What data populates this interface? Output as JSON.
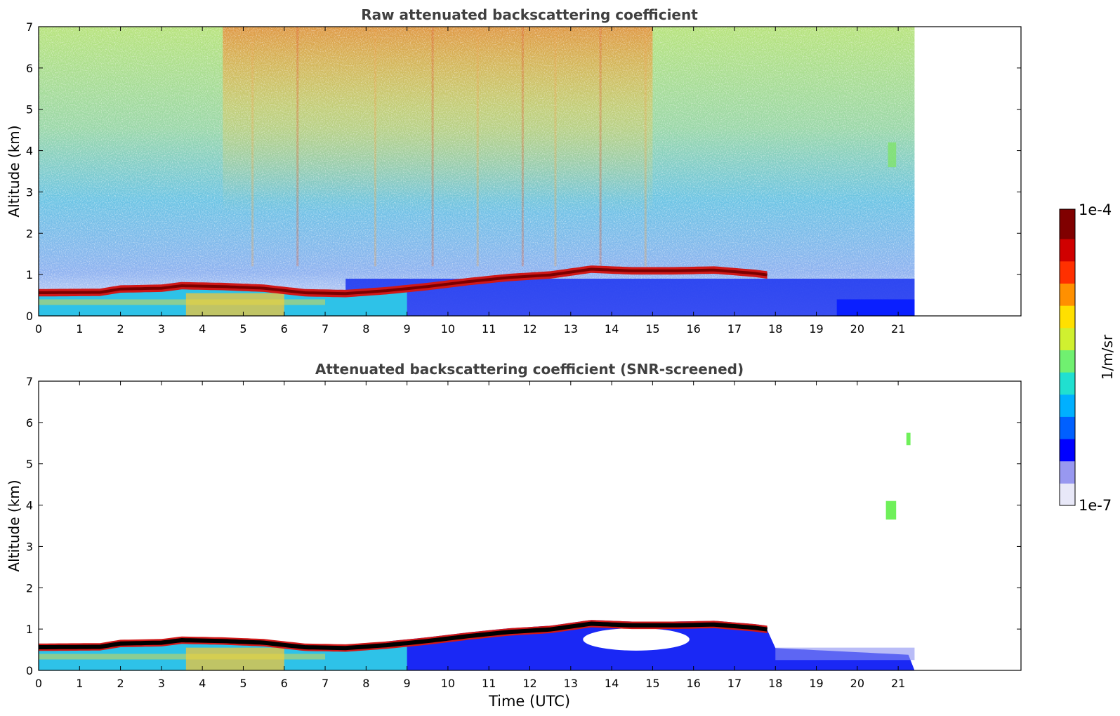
{
  "chart_data": [
    {
      "type": "heatmap",
      "title": "Raw attenuated backscattering coefficient",
      "xlabel": "",
      "ylabel": "Altitude (km)",
      "xlim": [
        0,
        24
      ],
      "ylim": [
        0,
        7
      ],
      "xticks": [
        "0",
        "1",
        "2",
        "3",
        "4",
        "5",
        "6",
        "7",
        "8",
        "9",
        "10",
        "11",
        "12",
        "13",
        "14",
        "15",
        "16",
        "17",
        "18",
        "19",
        "20",
        "21"
      ],
      "yticks": [
        "0",
        "1",
        "2",
        "3",
        "4",
        "5",
        "6",
        "7"
      ],
      "data_extent_x": [
        0,
        21.4
      ],
      "layer_top_x": [
        0,
        1.5,
        2,
        3,
        3.5,
        4.5,
        5.5,
        6.5,
        7.5,
        8.5,
        9.5,
        10.5,
        11.5,
        12.5,
        13.5,
        14.5,
        15.5,
        16.5,
        17.5,
        17.8
      ],
      "layer_top_y": [
        0.65,
        0.66,
        0.74,
        0.76,
        0.82,
        0.8,
        0.76,
        0.65,
        0.63,
        0.7,
        0.8,
        0.92,
        1.02,
        1.08,
        1.22,
        1.18,
        1.18,
        1.2,
        1.12,
        1.08
      ]
    },
    {
      "type": "heatmap",
      "title": "Attenuated backscattering coefficient (SNR-screened)",
      "xlabel": "Time (UTC)",
      "ylabel": "Altitude (km)",
      "xlim": [
        0,
        24
      ],
      "ylim": [
        0,
        7
      ],
      "xticks": [
        "0",
        "1",
        "2",
        "3",
        "4",
        "5",
        "6",
        "7",
        "8",
        "9",
        "10",
        "11",
        "12",
        "13",
        "14",
        "15",
        "16",
        "17",
        "18",
        "19",
        "20",
        "21"
      ],
      "yticks": [
        "0",
        "1",
        "2",
        "3",
        "4",
        "5",
        "6",
        "7"
      ],
      "data_extent_x": [
        0,
        21.4
      ],
      "layer_top_x": [
        0,
        1.5,
        2,
        3,
        3.5,
        4.5,
        5.5,
        6.5,
        7.5,
        8.5,
        9.5,
        10.5,
        11.5,
        12.5,
        13.5,
        14.5,
        15.5,
        16.5,
        17.5,
        17.8
      ],
      "layer_top_y": [
        0.65,
        0.66,
        0.74,
        0.76,
        0.82,
        0.8,
        0.76,
        0.65,
        0.63,
        0.7,
        0.8,
        0.92,
        1.02,
        1.08,
        1.22,
        1.18,
        1.18,
        1.2,
        1.12,
        1.08
      ],
      "isolated_features": [
        {
          "x": [
            20.7,
            20.95
          ],
          "y": [
            3.65,
            4.1
          ]
        },
        {
          "x": [
            21.2,
            21.3
          ],
          "y": [
            5.45,
            5.75
          ]
        }
      ]
    }
  ],
  "colorbar": {
    "max_label": "1e-4",
    "min_label": "1e-7",
    "unit_label": "1/m/sr",
    "colors": [
      "#e8e8f8",
      "#9898f0",
      "#0000ff",
      "#0060ff",
      "#00b0ff",
      "#20e0d0",
      "#70f070",
      "#d0f030",
      "#ffe000",
      "#ff9000",
      "#ff3000",
      "#d00000",
      "#800000"
    ]
  }
}
